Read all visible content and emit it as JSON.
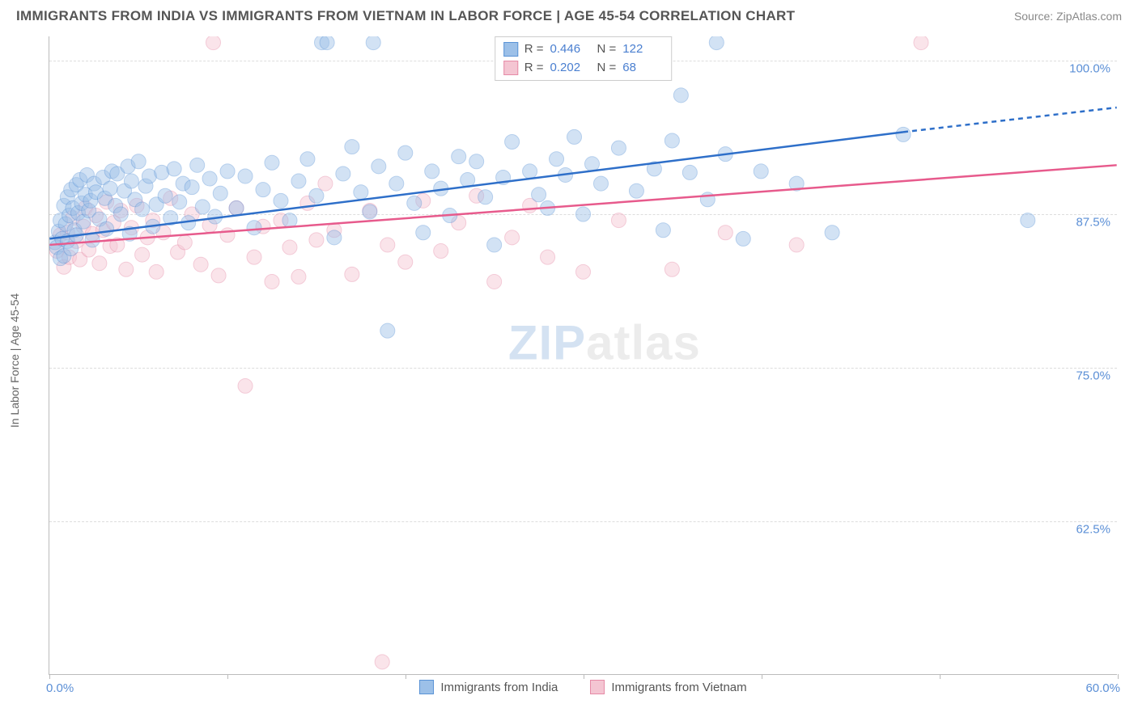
{
  "title": "IMMIGRANTS FROM INDIA VS IMMIGRANTS FROM VIETNAM IN LABOR FORCE | AGE 45-54 CORRELATION CHART",
  "source": "Source: ZipAtlas.com",
  "y_axis_title": "In Labor Force | Age 45-54",
  "watermark_a": "ZIP",
  "watermark_b": "atlas",
  "chart": {
    "type": "scatter",
    "xlim": [
      0,
      60
    ],
    "ylim": [
      50,
      102
    ],
    "x_ticks": [
      0,
      10,
      20,
      30,
      40,
      50,
      60
    ],
    "x_tick_labels_start": "0.0%",
    "x_tick_labels_end": "60.0%",
    "y_ticks": [
      62.5,
      75.0,
      87.5,
      100.0
    ],
    "y_tick_labels": [
      "62.5%",
      "75.0%",
      "87.5%",
      "100.0%"
    ],
    "grid_color": "#dddddd",
    "axis_color": "#bbbbbb",
    "background_color": "#ffffff",
    "marker_radius": 9,
    "marker_opacity": 0.45,
    "line_width": 2.5,
    "series": [
      {
        "name": "Immigrants from India",
        "color_fill": "#9cc0e8",
        "color_stroke": "#5a93d6",
        "line_color": "#2e6fc9",
        "R": "0.446",
        "N": "122",
        "trend": {
          "x1": 0,
          "y1": 85.5,
          "x2": 48,
          "y2": 94.2,
          "x2_dash": 60,
          "y2_dash": 96.2
        },
        "points": [
          [
            0.3,
            85.2
          ],
          [
            0.4,
            84.8
          ],
          [
            0.5,
            86.1
          ],
          [
            0.6,
            83.9
          ],
          [
            0.6,
            87.0
          ],
          [
            0.7,
            85.5
          ],
          [
            0.8,
            88.2
          ],
          [
            0.8,
            84.1
          ],
          [
            0.9,
            86.7
          ],
          [
            1.0,
            88.9
          ],
          [
            1.0,
            85.3
          ],
          [
            1.1,
            87.4
          ],
          [
            1.2,
            89.5
          ],
          [
            1.2,
            84.7
          ],
          [
            1.3,
            88.0
          ],
          [
            1.4,
            86.2
          ],
          [
            1.5,
            89.9
          ],
          [
            1.5,
            85.8
          ],
          [
            1.6,
            87.6
          ],
          [
            1.7,
            90.3
          ],
          [
            1.8,
            88.4
          ],
          [
            1.9,
            86.9
          ],
          [
            2.0,
            89.1
          ],
          [
            2.1,
            90.7
          ],
          [
            2.2,
            87.8
          ],
          [
            2.3,
            88.6
          ],
          [
            2.4,
            85.4
          ],
          [
            2.5,
            90.0
          ],
          [
            2.6,
            89.3
          ],
          [
            2.8,
            87.1
          ],
          [
            3.0,
            90.5
          ],
          [
            3.1,
            88.8
          ],
          [
            3.2,
            86.3
          ],
          [
            3.4,
            89.6
          ],
          [
            3.5,
            91.0
          ],
          [
            3.7,
            88.2
          ],
          [
            3.8,
            90.8
          ],
          [
            4.0,
            87.5
          ],
          [
            4.2,
            89.4
          ],
          [
            4.4,
            91.4
          ],
          [
            4.5,
            85.9
          ],
          [
            4.6,
            90.2
          ],
          [
            4.8,
            88.7
          ],
          [
            5.0,
            91.8
          ],
          [
            5.2,
            87.9
          ],
          [
            5.4,
            89.8
          ],
          [
            5.6,
            90.6
          ],
          [
            5.8,
            86.5
          ],
          [
            6.0,
            88.3
          ],
          [
            6.3,
            90.9
          ],
          [
            6.5,
            89.0
          ],
          [
            6.8,
            87.2
          ],
          [
            7.0,
            91.2
          ],
          [
            7.3,
            88.5
          ],
          [
            7.5,
            90.0
          ],
          [
            7.8,
            86.8
          ],
          [
            8.0,
            89.7
          ],
          [
            8.3,
            91.5
          ],
          [
            8.6,
            88.1
          ],
          [
            9.0,
            90.4
          ],
          [
            9.3,
            87.3
          ],
          [
            9.6,
            89.2
          ],
          [
            10.0,
            91.0
          ],
          [
            10.5,
            88.0
          ],
          [
            11.0,
            90.6
          ],
          [
            11.5,
            86.4
          ],
          [
            12.0,
            89.5
          ],
          [
            12.5,
            91.7
          ],
          [
            13.0,
            88.6
          ],
          [
            13.5,
            87.0
          ],
          [
            14.0,
            90.2
          ],
          [
            14.5,
            92.0
          ],
          [
            15.0,
            89.0
          ],
          [
            15.3,
            101.5
          ],
          [
            15.6,
            101.5
          ],
          [
            16.0,
            85.6
          ],
          [
            16.5,
            90.8
          ],
          [
            17.0,
            93.0
          ],
          [
            17.5,
            89.3
          ],
          [
            18.0,
            87.7
          ],
          [
            18.2,
            101.5
          ],
          [
            18.5,
            91.4
          ],
          [
            19.0,
            78.0
          ],
          [
            19.5,
            90.0
          ],
          [
            20.0,
            92.5
          ],
          [
            20.5,
            88.4
          ],
          [
            21.0,
            86.0
          ],
          [
            21.5,
            91.0
          ],
          [
            22.0,
            89.6
          ],
          [
            22.5,
            87.4
          ],
          [
            23.0,
            92.2
          ],
          [
            23.5,
            90.3
          ],
          [
            24.0,
            91.8
          ],
          [
            24.5,
            88.9
          ],
          [
            25.0,
            85.0
          ],
          [
            25.5,
            90.5
          ],
          [
            26.0,
            93.4
          ],
          [
            27.0,
            91.0
          ],
          [
            27.5,
            89.1
          ],
          [
            28.0,
            88.0
          ],
          [
            28.5,
            92.0
          ],
          [
            29.0,
            90.7
          ],
          [
            29.5,
            93.8
          ],
          [
            30.0,
            87.5
          ],
          [
            30.5,
            91.6
          ],
          [
            31.0,
            90.0
          ],
          [
            32.0,
            92.9
          ],
          [
            33.0,
            89.4
          ],
          [
            34.0,
            91.2
          ],
          [
            34.5,
            86.2
          ],
          [
            35.0,
            93.5
          ],
          [
            35.5,
            97.2
          ],
          [
            36.0,
            90.9
          ],
          [
            37.0,
            88.7
          ],
          [
            37.5,
            101.5
          ],
          [
            38.0,
            92.4
          ],
          [
            39.0,
            85.5
          ],
          [
            40.0,
            91.0
          ],
          [
            42.0,
            90.0
          ],
          [
            44.0,
            86.0
          ],
          [
            48.0,
            94.0
          ],
          [
            55.0,
            87.0
          ]
        ]
      },
      {
        "name": "Immigrants from Vietnam",
        "color_fill": "#f4c5d2",
        "color_stroke": "#e68aa6",
        "line_color": "#e75a8c",
        "R": "0.202",
        "N": "68",
        "trend": {
          "x1": 0,
          "y1": 85.0,
          "x2": 60,
          "y2": 91.5
        },
        "points": [
          [
            0.4,
            84.5
          ],
          [
            0.6,
            85.8
          ],
          [
            0.8,
            83.2
          ],
          [
            1.0,
            86.0
          ],
          [
            1.1,
            84.0
          ],
          [
            1.3,
            87.2
          ],
          [
            1.5,
            85.3
          ],
          [
            1.7,
            83.8
          ],
          [
            1.9,
            86.5
          ],
          [
            2.0,
            88.0
          ],
          [
            2.2,
            84.6
          ],
          [
            2.4,
            85.9
          ],
          [
            2.6,
            87.4
          ],
          [
            2.8,
            83.5
          ],
          [
            3.0,
            86.2
          ],
          [
            3.2,
            88.5
          ],
          [
            3.4,
            84.9
          ],
          [
            3.6,
            86.8
          ],
          [
            3.8,
            85.0
          ],
          [
            4.0,
            87.8
          ],
          [
            4.3,
            83.0
          ],
          [
            4.6,
            86.4
          ],
          [
            4.9,
            88.2
          ],
          [
            5.2,
            84.2
          ],
          [
            5.5,
            85.6
          ],
          [
            5.8,
            87.0
          ],
          [
            6.0,
            82.8
          ],
          [
            6.4,
            86.0
          ],
          [
            6.8,
            88.8
          ],
          [
            7.2,
            84.4
          ],
          [
            7.6,
            85.2
          ],
          [
            8.0,
            87.5
          ],
          [
            8.5,
            83.4
          ],
          [
            9.0,
            86.6
          ],
          [
            9.2,
            101.5
          ],
          [
            9.5,
            82.5
          ],
          [
            10.0,
            85.8
          ],
          [
            10.5,
            88.0
          ],
          [
            11.0,
            73.5
          ],
          [
            11.5,
            84.0
          ],
          [
            12.0,
            86.5
          ],
          [
            12.5,
            82.0
          ],
          [
            13.0,
            87.0
          ],
          [
            13.5,
            84.8
          ],
          [
            14.0,
            82.4
          ],
          [
            14.5,
            88.4
          ],
          [
            15.0,
            85.4
          ],
          [
            15.5,
            90.0
          ],
          [
            16.0,
            86.2
          ],
          [
            17.0,
            82.6
          ],
          [
            18.0,
            87.8
          ],
          [
            18.7,
            51.0
          ],
          [
            19.0,
            85.0
          ],
          [
            20.0,
            83.6
          ],
          [
            21.0,
            88.6
          ],
          [
            22.0,
            84.5
          ],
          [
            23.0,
            86.8
          ],
          [
            24.0,
            89.0
          ],
          [
            25.0,
            82.0
          ],
          [
            26.0,
            85.6
          ],
          [
            27.0,
            88.2
          ],
          [
            28.0,
            84.0
          ],
          [
            30.0,
            82.8
          ],
          [
            32.0,
            87.0
          ],
          [
            35.0,
            83.0
          ],
          [
            38.0,
            86.0
          ],
          [
            42.0,
            85.0
          ],
          [
            49.0,
            101.5
          ]
        ]
      }
    ]
  },
  "legend_top": {
    "R_label": "R =",
    "N_label": "N ="
  },
  "legend_bottom": [
    "Immigrants from India",
    "Immigrants from Vietnam"
  ]
}
